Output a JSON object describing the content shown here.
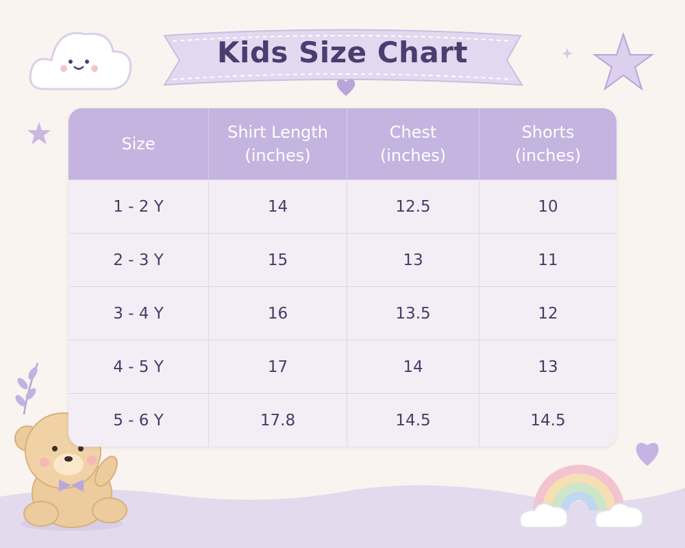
{
  "title": "Kids Size Chart",
  "table": {
    "headers": [
      {
        "label": "Size"
      },
      {
        "label": "Shirt Length",
        "unit": "(inches)"
      },
      {
        "label": "Chest",
        "unit": "(inches)"
      },
      {
        "label": "Shorts",
        "unit": "(inches)"
      }
    ],
    "rows": [
      [
        "1 - 2 Y",
        "14",
        "12.5",
        "10"
      ],
      [
        "2 - 3 Y",
        "15",
        "13",
        "11"
      ],
      [
        "3 - 4 Y",
        "16",
        "13.5",
        "12"
      ],
      [
        "4 - 5 Y",
        "17",
        "14",
        "13"
      ],
      [
        "5 - 6 Y",
        "17.8",
        "14.5",
        "14.5"
      ]
    ]
  }
}
